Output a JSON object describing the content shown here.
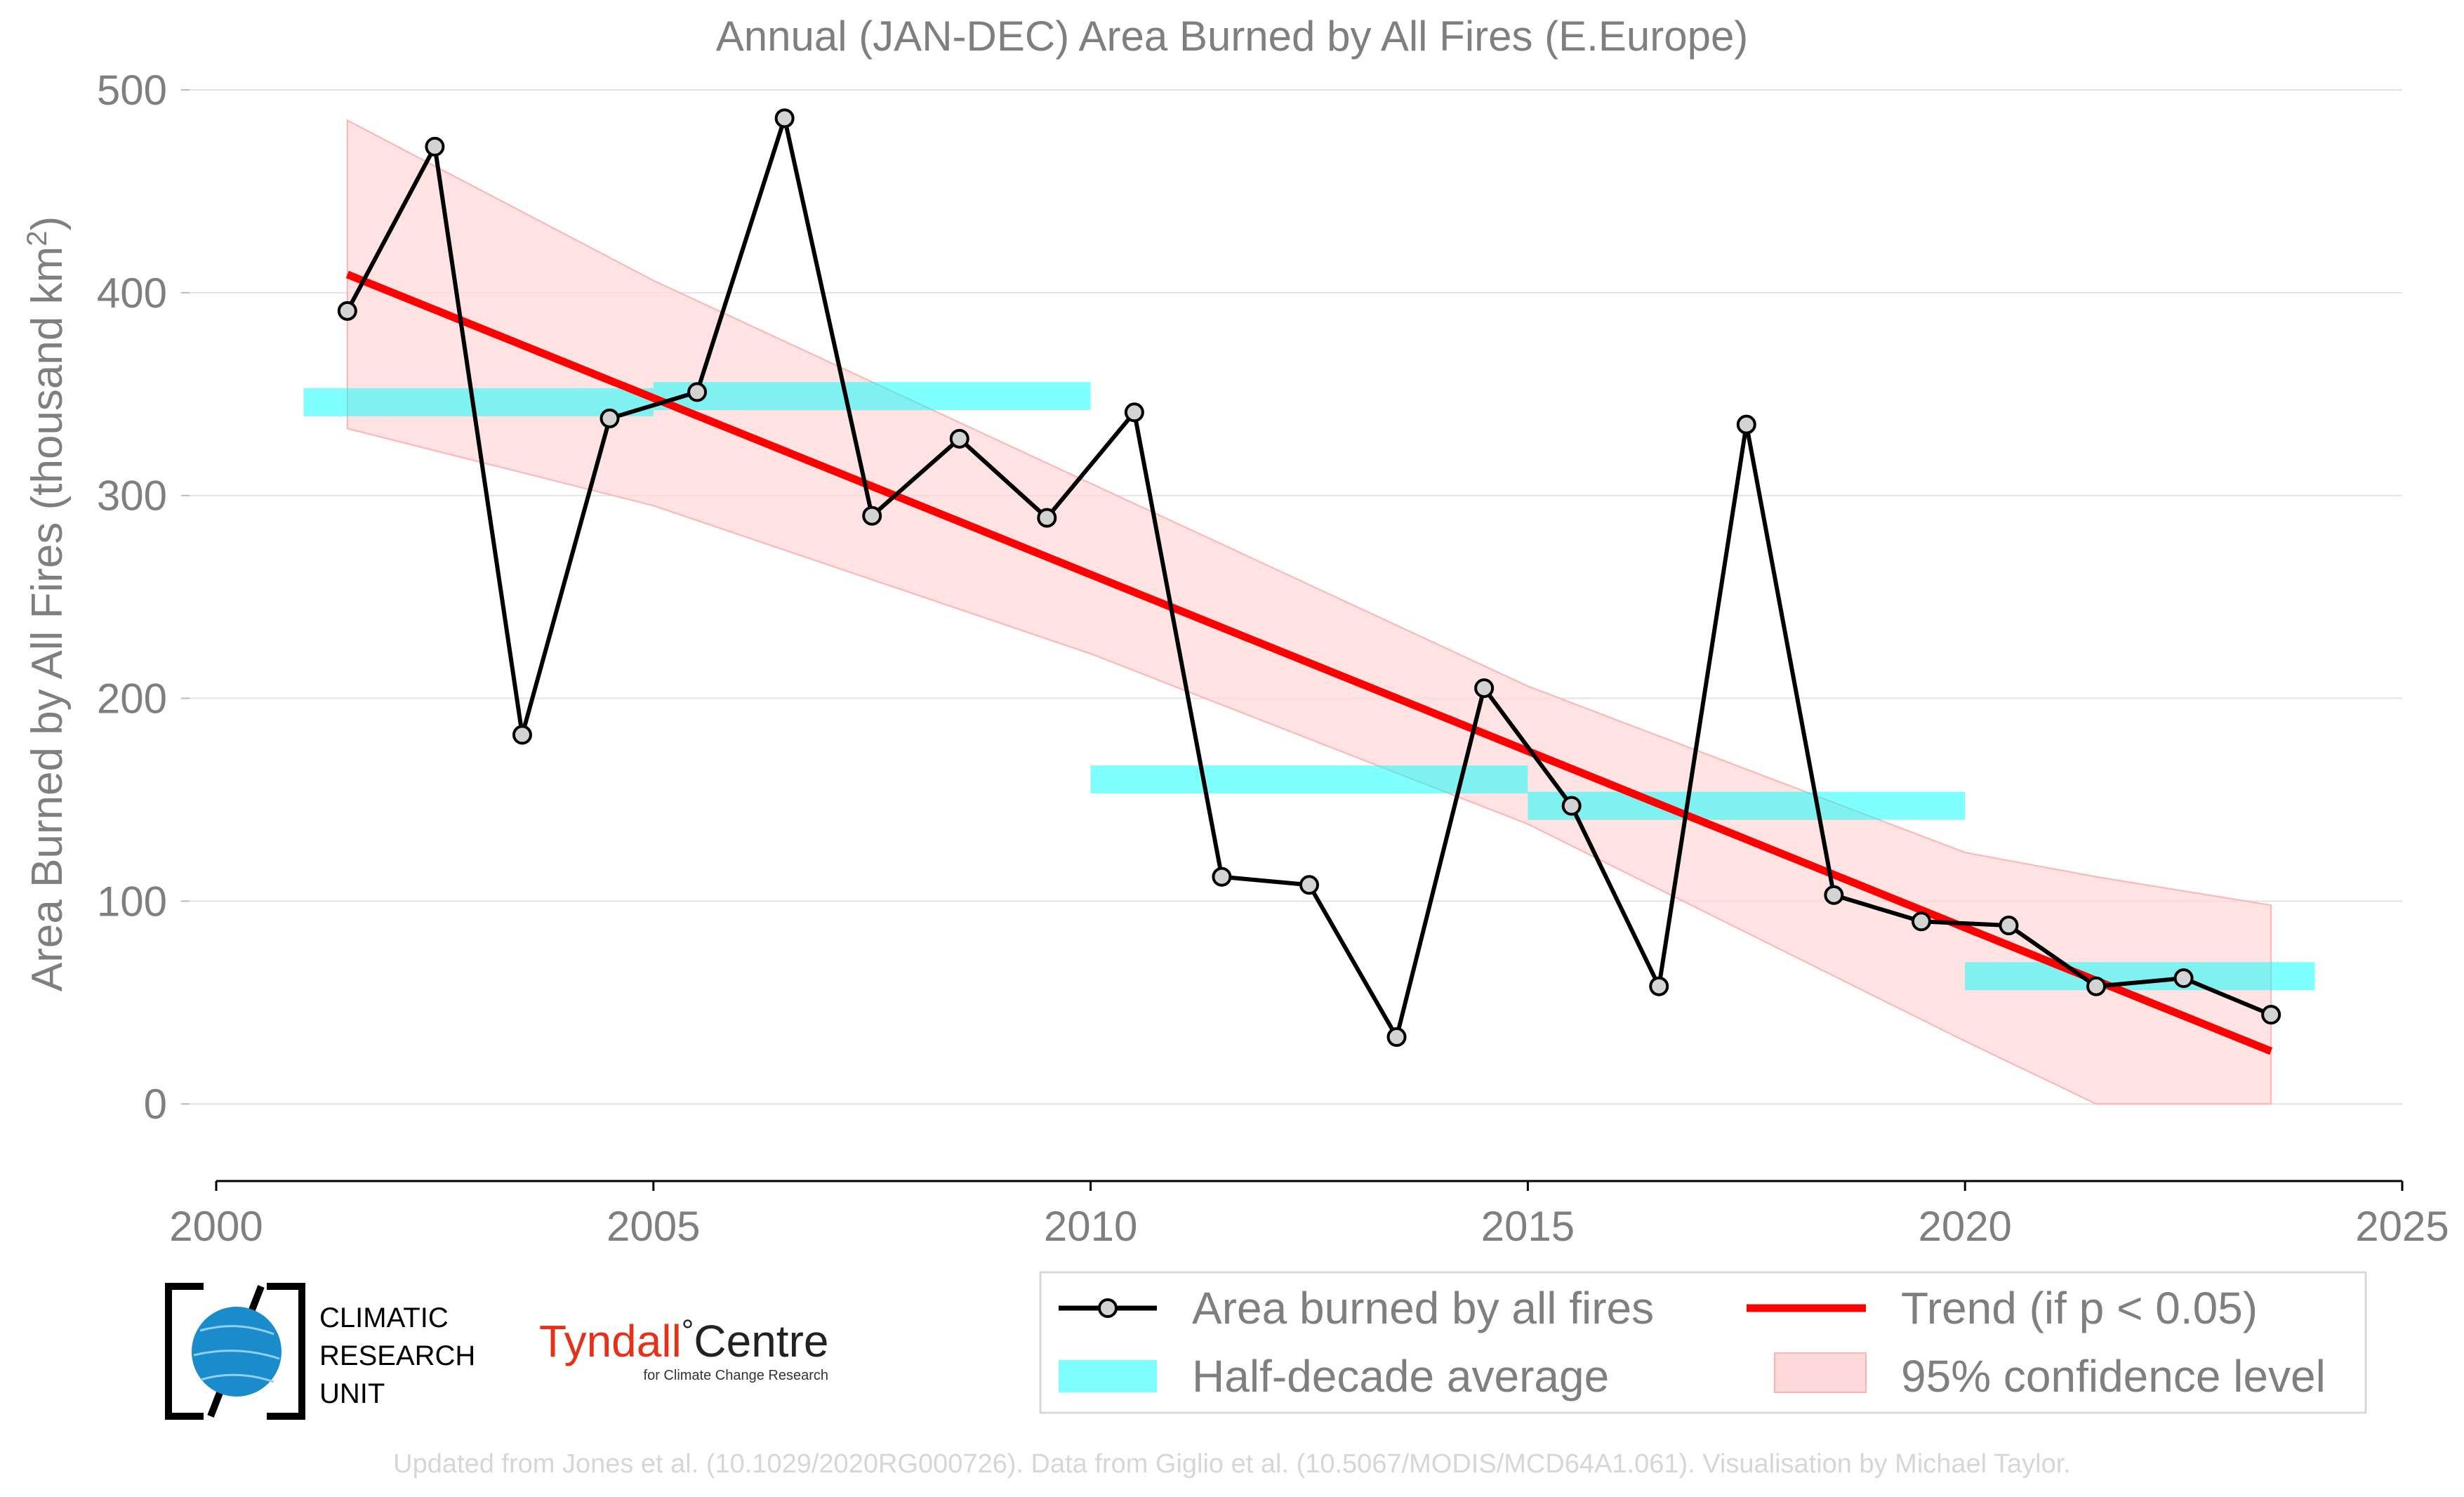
{
  "chart_data": {
    "type": "line",
    "title": "Annual (JAN-DEC) Area Burned by All Fires (E.Europe)",
    "ylabel": "Area Burned by All Fires (thousand km",
    "ylabel_sup": "2",
    "ylabel_close": ")",
    "xlim": [
      2000,
      2025
    ],
    "ylim": [
      -38,
      500
    ],
    "xticks": [
      "2000",
      "2005",
      "2010",
      "2015",
      "2020",
      "2025"
    ],
    "yticks": [
      "0",
      "100",
      "200",
      "300",
      "400",
      "500"
    ],
    "grid": "horizontal",
    "legend_position": "bottom-right",
    "series": [
      {
        "name": "Area burned by all fires",
        "color": "#000000",
        "x": [
          2001.5,
          2002.5,
          2003.5,
          2004.5,
          2005.5,
          2006.5,
          2007.5,
          2008.5,
          2009.5,
          2010.5,
          2011.5,
          2012.5,
          2013.5,
          2014.5,
          2015.5,
          2016.5,
          2017.5,
          2018.5,
          2019.5,
          2020.5,
          2021.5,
          2022.5,
          2023.5
        ],
        "values": [
          391,
          472,
          182,
          338,
          351,
          486,
          290,
          328,
          289,
          341,
          112,
          108,
          33,
          205,
          147,
          58,
          335,
          103,
          90,
          88,
          58,
          62,
          44
        ]
      }
    ],
    "half_decade_average": {
      "name": "Half-decade average",
      "color": "#00ffff",
      "segments": [
        {
          "x0": 2001,
          "x1": 2005,
          "value": 346
        },
        {
          "x0": 2005,
          "x1": 2010,
          "value": 349
        },
        {
          "x0": 2010,
          "x1": 2015,
          "value": 160
        },
        {
          "x0": 2015,
          "x1": 2020,
          "value": 147
        },
        {
          "x0": 2020,
          "x1": 2024,
          "value": 63
        }
      ]
    },
    "trend": {
      "name": "Trend (if p < 0.05)",
      "color": "#ff0000",
      "x": [
        2001.5,
        2023.5
      ],
      "values": [
        409,
        26
      ]
    },
    "confidence": {
      "name": "95% confidence level",
      "color": "#ffb3b3",
      "x": [
        2001.5,
        2005,
        2010,
        2015,
        2020,
        2021.5,
        2023.5
      ],
      "upper": [
        485,
        406,
        306,
        206,
        124,
        112,
        98
      ],
      "lower": [
        333,
        295,
        222,
        138,
        31,
        0,
        0
      ]
    }
  },
  "legend": {
    "items": [
      {
        "label": "Area burned by all fires"
      },
      {
        "label": "Trend (if p < 0.05)"
      },
      {
        "label": "Half-decade average"
      },
      {
        "label": "95% confidence level"
      }
    ]
  },
  "logos": {
    "cru_line1": "CLIMATIC",
    "cru_line2": "RESEARCH",
    "cru_line3": "UNIT",
    "tyndall_name": "Tyndall",
    "tyndall_degree": "°",
    "tyndall_centre": "Centre",
    "tyndall_sub": "for Climate Change Research"
  },
  "footer": "Updated from Jones et al. (10.1029/2020RG000726). Data from Giglio et al. (10.5067/MODIS/MCD64A1.061). Visualisation by Michael Taylor."
}
